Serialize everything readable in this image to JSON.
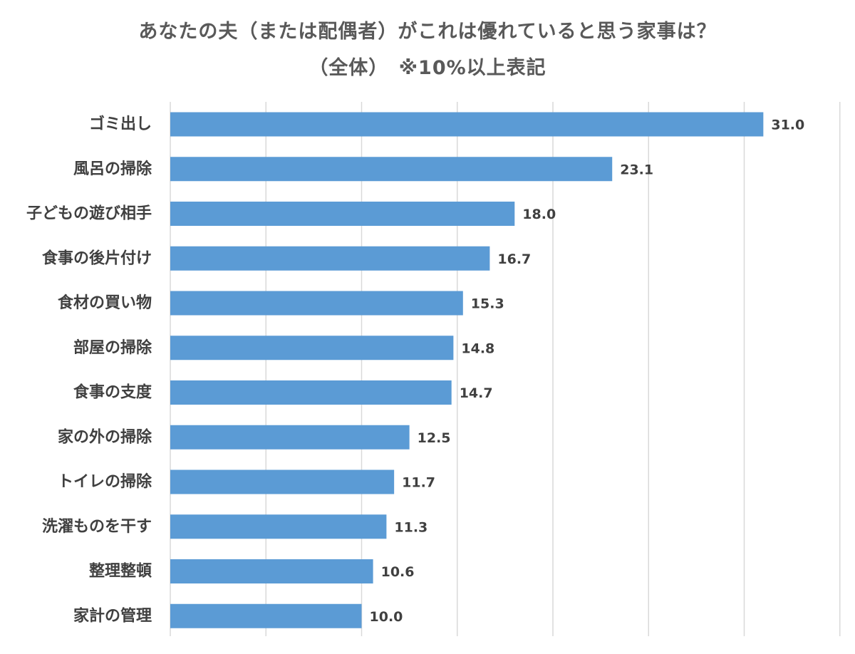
{
  "title": {
    "line1": "あなたの夫（または配偶者）がこれは優れていると思う家事は？",
    "line2": "（全体）　※10%以上表記"
  },
  "colors": {
    "bar": "#5b9bd5",
    "grid": "#d9d9d9",
    "text": "#404040",
    "title": "#595959"
  },
  "chart_data": {
    "type": "bar",
    "orientation": "horizontal",
    "title": "あなたの夫（または配偶者）がこれは優れていると思う家事は？ （全体）　※10%以上表記",
    "xlabel": "",
    "ylabel": "",
    "xlim": [
      0,
      35
    ],
    "grid": true,
    "legend": "none",
    "categories": [
      "ゴミ出し",
      "風呂の掃除",
      "子どもの遊び相手",
      "食事の後片付け",
      "食材の買い物",
      "部屋の掃除",
      "食事の支度",
      "家の外の掃除",
      "トイレの掃除",
      "洗濯ものを干す",
      "整理整頓",
      "家計の管理"
    ],
    "values": [
      31.0,
      23.1,
      18.0,
      16.7,
      15.3,
      14.8,
      14.7,
      12.5,
      11.7,
      11.3,
      10.6,
      10.0
    ],
    "value_labels": [
      "31.0",
      "23.1",
      "18.0",
      "16.7",
      "15.3",
      "14.8",
      "14.7",
      "12.5",
      "11.7",
      "11.3",
      "10.6",
      "10.0"
    ]
  }
}
